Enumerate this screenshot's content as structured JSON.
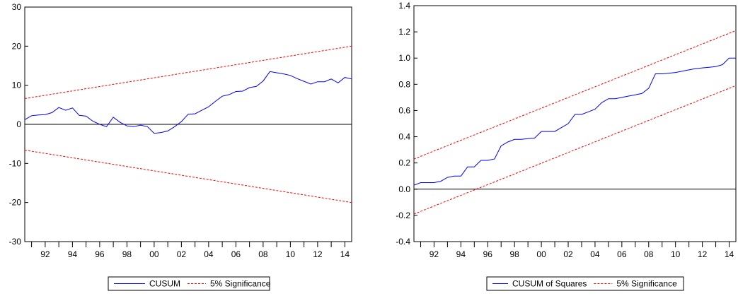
{
  "charts": [
    {
      "type": "line",
      "ylim": [
        -30,
        30
      ],
      "yticks": [
        -30,
        -20,
        -10,
        0,
        10,
        20,
        30
      ],
      "ytick_labels": [
        "-30",
        "-20",
        "-10",
        "0",
        "10",
        "20",
        "30"
      ],
      "xlim": [
        1991.0,
        2015.0
      ],
      "xtick_labels": [
        "92",
        "94",
        "96",
        "98",
        "00",
        "02",
        "04",
        "06",
        "08",
        "10",
        "12",
        "14"
      ],
      "legend": [
        "CUSUM",
        "5% Significance"
      ],
      "legend_position": "bottom-center",
      "series": [
        {
          "name": "CUSUM",
          "color": "#0000ff",
          "style": "solid",
          "x": [
            1991.0,
            1991.5,
            1992.0,
            1992.5,
            1993.0,
            1993.5,
            1994.0,
            1994.5,
            1995.0,
            1995.5,
            1996.0,
            1996.5,
            1997.0,
            1997.5,
            1998.0,
            1998.5,
            1999.0,
            1999.5,
            2000.0,
            2000.5,
            2001.0,
            2001.5,
            2002.0,
            2002.5,
            2003.0,
            2003.5,
            2004.0,
            2004.5,
            2005.0,
            2005.5,
            2006.0,
            2006.5,
            2007.0,
            2007.5,
            2008.0,
            2008.5,
            2009.0,
            2009.5,
            2010.0,
            2010.5,
            2011.0,
            2011.5,
            2012.0,
            2012.5,
            2013.0,
            2013.5,
            2014.0,
            2014.5,
            2015.0
          ],
          "y": [
            1.2,
            2.2,
            2.4,
            2.5,
            3.0,
            4.3,
            3.6,
            4.2,
            2.3,
            2.1,
            0.8,
            0.0,
            -0.6,
            1.8,
            0.5,
            -0.4,
            -0.6,
            -0.2,
            -0.6,
            -2.3,
            -2.1,
            -1.7,
            -0.6,
            0.7,
            2.6,
            2.7,
            3.6,
            4.5,
            5.9,
            7.2,
            7.6,
            8.4,
            8.5,
            9.4,
            9.7,
            11.1,
            13.5,
            13.2,
            12.9,
            12.5,
            11.7,
            11.0,
            10.3,
            10.9,
            10.9,
            11.6,
            10.6,
            12.0,
            11.6
          ]
        },
        {
          "name": "5% Significance",
          "color": "#ff0000",
          "style": "dashed",
          "x": [
            1991.0,
            2015.0
          ],
          "y": [
            6.6,
            20.0
          ]
        },
        {
          "name": "5% Significance",
          "color": "#ff0000",
          "style": "dashed",
          "x": [
            1991.0,
            2015.0
          ],
          "y": [
            -6.6,
            -20.0
          ]
        }
      ]
    },
    {
      "type": "line",
      "ylim": [
        -0.4,
        1.4
      ],
      "yticks": [
        -0.4,
        -0.2,
        0.0,
        0.2,
        0.4,
        0.6,
        0.8,
        1.0,
        1.2,
        1.4
      ],
      "ytick_labels": [
        "-0.4",
        "-0.2",
        "0.0",
        "0.2",
        "0.4",
        "0.6",
        "0.8",
        "1.0",
        "1.2",
        "1.4"
      ],
      "xlim": [
        1991.0,
        2015.0
      ],
      "xtick_labels": [
        "92",
        "94",
        "96",
        "98",
        "00",
        "02",
        "04",
        "06",
        "08",
        "10",
        "12",
        "14"
      ],
      "legend": [
        "CUSUM of Squares",
        "5% Significance"
      ],
      "legend_position": "bottom-center",
      "series": [
        {
          "name": "CUSUM of Squares",
          "color": "#0000ff",
          "style": "solid",
          "x": [
            1991.0,
            1991.5,
            1992.0,
            1992.5,
            1993.0,
            1993.5,
            1994.0,
            1994.5,
            1995.0,
            1995.5,
            1996.0,
            1996.5,
            1997.0,
            1997.5,
            1998.0,
            1998.5,
            1999.0,
            1999.5,
            2000.0,
            2000.5,
            2001.0,
            2001.5,
            2002.0,
            2002.5,
            2003.0,
            2003.5,
            2004.0,
            2004.5,
            2005.0,
            2005.5,
            2006.0,
            2006.5,
            2007.0,
            2007.5,
            2008.0,
            2008.5,
            2009.0,
            2009.5,
            2010.0,
            2010.5,
            2011.0,
            2011.5,
            2012.0,
            2012.5,
            2013.0,
            2013.5,
            2014.0,
            2014.5,
            2015.0
          ],
          "y": [
            0.03,
            0.05,
            0.05,
            0.05,
            0.06,
            0.09,
            0.1,
            0.1,
            0.17,
            0.17,
            0.22,
            0.22,
            0.23,
            0.33,
            0.36,
            0.38,
            0.38,
            0.385,
            0.39,
            0.44,
            0.44,
            0.44,
            0.47,
            0.5,
            0.57,
            0.57,
            0.59,
            0.61,
            0.66,
            0.69,
            0.69,
            0.7,
            0.71,
            0.72,
            0.73,
            0.77,
            0.88,
            0.88,
            0.885,
            0.89,
            0.9,
            0.91,
            0.92,
            0.925,
            0.93,
            0.935,
            0.95,
            1.0,
            1.0
          ]
        },
        {
          "name": "5% Significance",
          "color": "#ff0000",
          "style": "dashed",
          "x": [
            1991.0,
            2015.0
          ],
          "y": [
            0.23,
            1.21
          ]
        },
        {
          "name": "5% Significance",
          "color": "#ff0000",
          "style": "dashed",
          "x": [
            1991.0,
            2015.0
          ],
          "y": [
            -0.19,
            0.79
          ]
        }
      ]
    }
  ],
  "chart_data": [
    {
      "type": "line",
      "ylim": [
        -30,
        30
      ],
      "xtick_labels": [
        "92",
        "94",
        "96",
        "98",
        "00",
        "02",
        "04",
        "06",
        "08",
        "10",
        "12",
        "14"
      ],
      "legend": [
        "CUSUM",
        "5% Significance"
      ],
      "series_names": [
        "CUSUM",
        "5% Significance"
      ]
    },
    {
      "type": "line",
      "ylim": [
        -0.4,
        1.4
      ],
      "xtick_labels": [
        "92",
        "94",
        "96",
        "98",
        "00",
        "02",
        "04",
        "06",
        "08",
        "10",
        "12",
        "14"
      ],
      "legend": [
        "CUSUM of Squares",
        "5% Significance"
      ],
      "series_names": [
        "CUSUM of Squares",
        "5% Significance"
      ]
    }
  ]
}
